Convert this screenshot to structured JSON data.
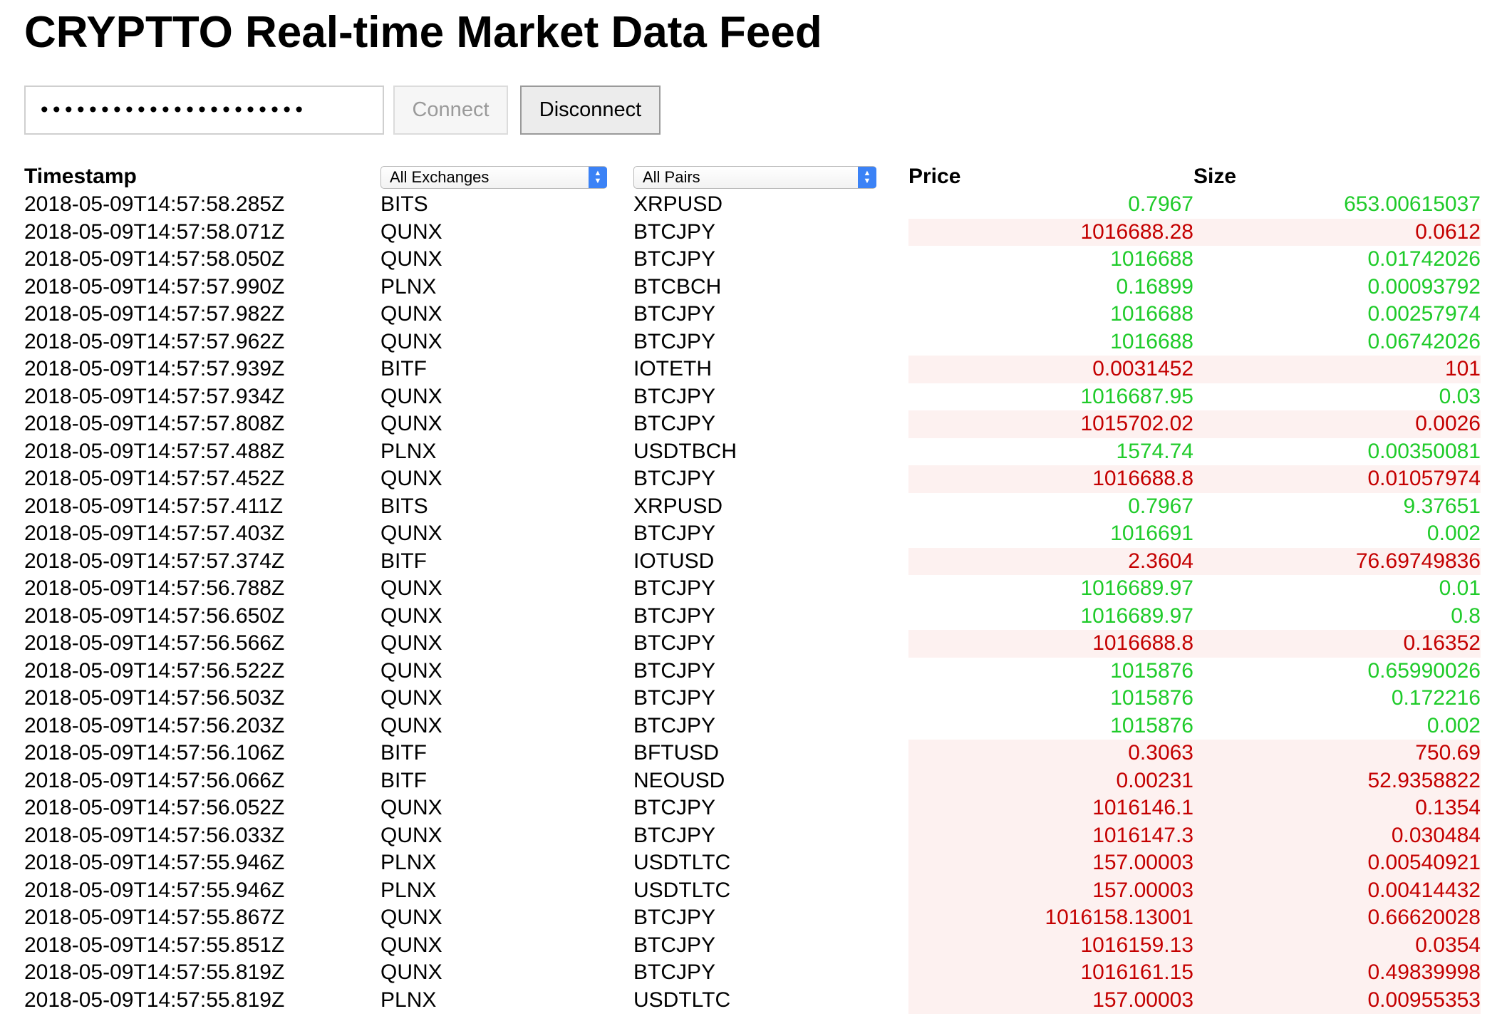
{
  "title": "CRYPTTO Real-time Market Data Feed",
  "connection": {
    "token_value": "••••••••••••••••••••••",
    "connect_label": "Connect",
    "disconnect_label": "Disconnect"
  },
  "table": {
    "headers": {
      "timestamp": "Timestamp",
      "price": "Price",
      "size": "Size"
    },
    "filters": {
      "exchange_selected": "All Exchanges",
      "pair_selected": "All Pairs"
    },
    "colors": {
      "up": "#1fcb2a",
      "down": "#c40000",
      "down_bg": "#fdf1f0"
    },
    "rows": [
      {
        "timestamp": "2018-05-09T14:57:58.285Z",
        "exchange": "BITS",
        "pair": "XRPUSD",
        "price": "0.7967",
        "size": "653.00615037",
        "direction": "up"
      },
      {
        "timestamp": "2018-05-09T14:57:58.071Z",
        "exchange": "QUNX",
        "pair": "BTCJPY",
        "price": "1016688.28",
        "size": "0.0612",
        "direction": "down"
      },
      {
        "timestamp": "2018-05-09T14:57:58.050Z",
        "exchange": "QUNX",
        "pair": "BTCJPY",
        "price": "1016688",
        "size": "0.01742026",
        "direction": "up"
      },
      {
        "timestamp": "2018-05-09T14:57:57.990Z",
        "exchange": "PLNX",
        "pair": "BTCBCH",
        "price": "0.16899",
        "size": "0.00093792",
        "direction": "up"
      },
      {
        "timestamp": "2018-05-09T14:57:57.982Z",
        "exchange": "QUNX",
        "pair": "BTCJPY",
        "price": "1016688",
        "size": "0.00257974",
        "direction": "up"
      },
      {
        "timestamp": "2018-05-09T14:57:57.962Z",
        "exchange": "QUNX",
        "pair": "BTCJPY",
        "price": "1016688",
        "size": "0.06742026",
        "direction": "up"
      },
      {
        "timestamp": "2018-05-09T14:57:57.939Z",
        "exchange": "BITF",
        "pair": "IOTETH",
        "price": "0.0031452",
        "size": "101",
        "direction": "down"
      },
      {
        "timestamp": "2018-05-09T14:57:57.934Z",
        "exchange": "QUNX",
        "pair": "BTCJPY",
        "price": "1016687.95",
        "size": "0.03",
        "direction": "up"
      },
      {
        "timestamp": "2018-05-09T14:57:57.808Z",
        "exchange": "QUNX",
        "pair": "BTCJPY",
        "price": "1015702.02",
        "size": "0.0026",
        "direction": "down"
      },
      {
        "timestamp": "2018-05-09T14:57:57.488Z",
        "exchange": "PLNX",
        "pair": "USDTBCH",
        "price": "1574.74",
        "size": "0.00350081",
        "direction": "up"
      },
      {
        "timestamp": "2018-05-09T14:57:57.452Z",
        "exchange": "QUNX",
        "pair": "BTCJPY",
        "price": "1016688.8",
        "size": "0.01057974",
        "direction": "down"
      },
      {
        "timestamp": "2018-05-09T14:57:57.411Z",
        "exchange": "BITS",
        "pair": "XRPUSD",
        "price": "0.7967",
        "size": "9.37651",
        "direction": "up"
      },
      {
        "timestamp": "2018-05-09T14:57:57.403Z",
        "exchange": "QUNX",
        "pair": "BTCJPY",
        "price": "1016691",
        "size": "0.002",
        "direction": "up"
      },
      {
        "timestamp": "2018-05-09T14:57:57.374Z",
        "exchange": "BITF",
        "pair": "IOTUSD",
        "price": "2.3604",
        "size": "76.69749836",
        "direction": "down"
      },
      {
        "timestamp": "2018-05-09T14:57:56.788Z",
        "exchange": "QUNX",
        "pair": "BTCJPY",
        "price": "1016689.97",
        "size": "0.01",
        "direction": "up"
      },
      {
        "timestamp": "2018-05-09T14:57:56.650Z",
        "exchange": "QUNX",
        "pair": "BTCJPY",
        "price": "1016689.97",
        "size": "0.8",
        "direction": "up"
      },
      {
        "timestamp": "2018-05-09T14:57:56.566Z",
        "exchange": "QUNX",
        "pair": "BTCJPY",
        "price": "1016688.8",
        "size": "0.16352",
        "direction": "down"
      },
      {
        "timestamp": "2018-05-09T14:57:56.522Z",
        "exchange": "QUNX",
        "pair": "BTCJPY",
        "price": "1015876",
        "size": "0.65990026",
        "direction": "up"
      },
      {
        "timestamp": "2018-05-09T14:57:56.503Z",
        "exchange": "QUNX",
        "pair": "BTCJPY",
        "price": "1015876",
        "size": "0.172216",
        "direction": "up"
      },
      {
        "timestamp": "2018-05-09T14:57:56.203Z",
        "exchange": "QUNX",
        "pair": "BTCJPY",
        "price": "1015876",
        "size": "0.002",
        "direction": "up"
      },
      {
        "timestamp": "2018-05-09T14:57:56.106Z",
        "exchange": "BITF",
        "pair": "BFTUSD",
        "price": "0.3063",
        "size": "750.69",
        "direction": "down"
      },
      {
        "timestamp": "2018-05-09T14:57:56.066Z",
        "exchange": "BITF",
        "pair": "NEOUSD",
        "price": "0.00231",
        "size": "52.9358822",
        "direction": "down"
      },
      {
        "timestamp": "2018-05-09T14:57:56.052Z",
        "exchange": "QUNX",
        "pair": "BTCJPY",
        "price": "1016146.1",
        "size": "0.1354",
        "direction": "down"
      },
      {
        "timestamp": "2018-05-09T14:57:56.033Z",
        "exchange": "QUNX",
        "pair": "BTCJPY",
        "price": "1016147.3",
        "size": "0.030484",
        "direction": "down"
      },
      {
        "timestamp": "2018-05-09T14:57:55.946Z",
        "exchange": "PLNX",
        "pair": "USDTLTC",
        "price": "157.00003",
        "size": "0.00540921",
        "direction": "down"
      },
      {
        "timestamp": "2018-05-09T14:57:55.946Z",
        "exchange": "PLNX",
        "pair": "USDTLTC",
        "price": "157.00003",
        "size": "0.00414432",
        "direction": "down"
      },
      {
        "timestamp": "2018-05-09T14:57:55.867Z",
        "exchange": "QUNX",
        "pair": "BTCJPY",
        "price": "1016158.13001",
        "size": "0.66620028",
        "direction": "down"
      },
      {
        "timestamp": "2018-05-09T14:57:55.851Z",
        "exchange": "QUNX",
        "pair": "BTCJPY",
        "price": "1016159.13",
        "size": "0.0354",
        "direction": "down"
      },
      {
        "timestamp": "2018-05-09T14:57:55.819Z",
        "exchange": "QUNX",
        "pair": "BTCJPY",
        "price": "1016161.15",
        "size": "0.49839998",
        "direction": "down"
      },
      {
        "timestamp": "2018-05-09T14:57:55.819Z",
        "exchange": "PLNX",
        "pair": "USDTLTC",
        "price": "157.00003",
        "size": "0.00955353",
        "direction": "down"
      }
    ]
  }
}
